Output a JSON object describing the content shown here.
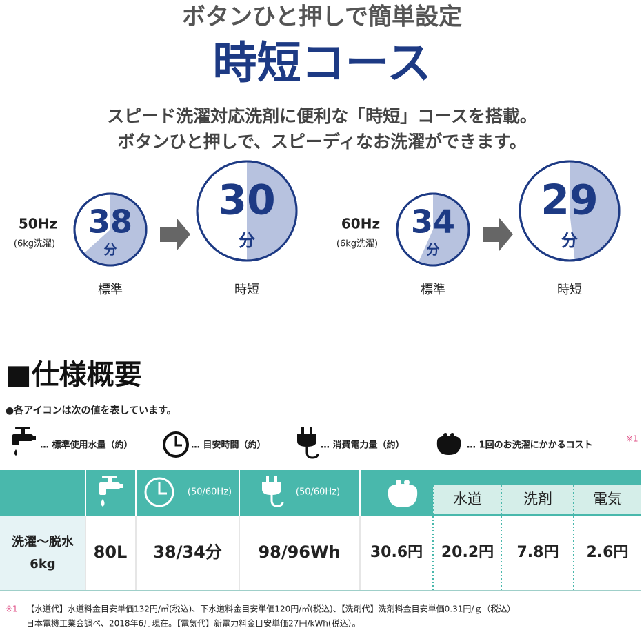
{
  "header": {
    "tagline": "ボタンひと押しで簡単設定",
    "title": "時短コース",
    "lead": [
      "スピード洗濯対応洗剤に便利な「時短」コースを搭載。",
      "ボタンひと押しで、スピーディなお洗濯ができます。"
    ]
  },
  "comparison": [
    {
      "frequency": "50Hz",
      "load": "(6kg洗濯)",
      "standard": {
        "minutes": 38,
        "unit": "分",
        "label": "標準"
      },
      "quick": {
        "minutes": 30,
        "unit": "分",
        "label": "時短"
      }
    },
    {
      "frequency": "60Hz",
      "load": "(6kg洗濯)",
      "standard": {
        "minutes": 34,
        "unit": "分",
        "label": "標準"
      },
      "quick": {
        "minutes": 29,
        "unit": "分",
        "label": "時短"
      }
    }
  ],
  "spec": {
    "heading": "■仕様概要",
    "note": "●各アイコンは次の値を表しています。",
    "legend": [
      "… 標準使用水量（約）",
      "… 目安時間（約）",
      "… 消費電力量（約）",
      "… 1回のお洗濯にかかるコスト"
    ],
    "legend_mark": "※1",
    "table": {
      "header": [
        "(50/60Hz)",
        "(50/60Hz)"
      ],
      "cost_subheaders": [
        "水道",
        "洗剤",
        "電気"
      ],
      "row_label": [
        "洗濯〜脱水",
        "6kg"
      ],
      "cells": [
        "80L",
        "38/34分",
        "98/96Wh",
        "30.6円",
        "20.2円",
        "7.8円",
        "2.6円"
      ]
    }
  },
  "footnote": {
    "mark": "※1",
    "lines": [
      "【水道代】水道料金目安単価132円/㎥(税込)、下水道料金目安単価120円/㎥(税込)、【洗剤代】洗剤料金目安単価0.31円/ｇ（税込）",
      "日本電機工業会調べ、2018年6月現在。【電気代】新電力料金目安単価27円/kWh(税込）。"
    ]
  }
}
